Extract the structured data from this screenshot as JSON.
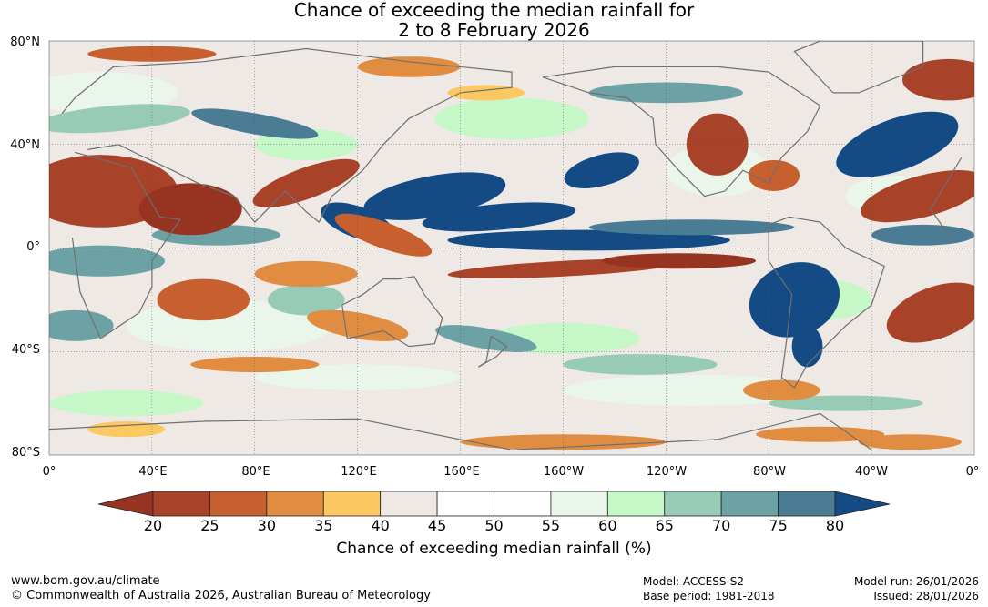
{
  "title": {
    "line1": "Chance of exceeding the median rainfall for",
    "line2": "2 to 8 February 2026"
  },
  "map": {
    "lat_labels": [
      "80°N",
      "40°N",
      "0°",
      "40°S",
      "80°S"
    ],
    "lon_labels": [
      "0°",
      "40°E",
      "80°E",
      "120°E",
      "160°E",
      "160°W",
      "120°W",
      "80°W",
      "40°W",
      "0°"
    ]
  },
  "colorbar": {
    "ticks": [
      "20",
      "25",
      "30",
      "35",
      "40",
      "45",
      "50",
      "55",
      "60",
      "65",
      "70",
      "75",
      "80"
    ],
    "colors": [
      "#a8432a",
      "#c75f2e",
      "#e08d42",
      "#fcc862",
      "#efe9e6",
      "#ffffff",
      "#ffffff",
      "#eaf6ea",
      "#c6f7c6",
      "#98cbb6",
      "#6ca2a6",
      "#4a7c94"
    ],
    "low_extend_color": "#963321",
    "high_extend_color": "#144b85",
    "label": "Chance of exceeding median rainfall (%)"
  },
  "footer": {
    "website": "www.bom.gov.au/climate",
    "copyright": "© Commonwealth of Australia 2026, Australian Bureau of Meteorology",
    "model": "Model: ACCESS-S2",
    "base_period": "Base period: 1981-2018",
    "model_run": "Model run: 26/01/2026",
    "issued": "Issued: 28/01/2026"
  }
}
